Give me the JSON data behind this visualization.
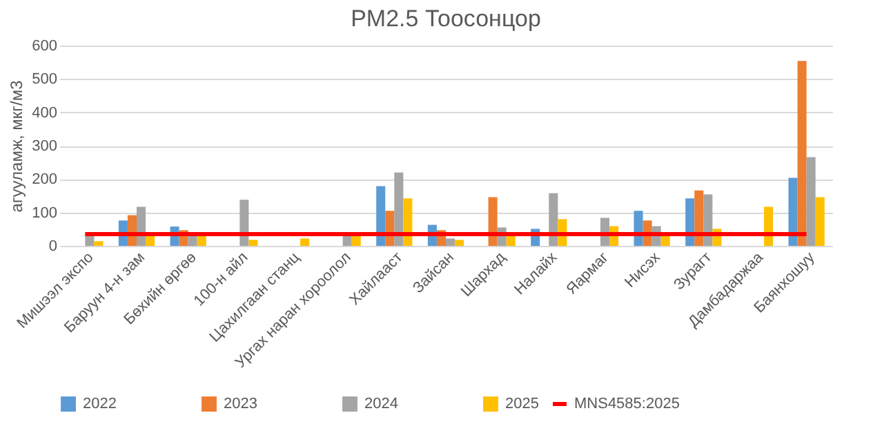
{
  "chart_data": {
    "type": "bar",
    "title": "PM2.5 Тоосонцор",
    "ylabel": "агууламж, мкг/м3",
    "categories": [
      "Мишээл экспо",
      "Баруун 4-н зам",
      "Бөхийн өргөө",
      "100-н айл",
      "Цахилгаан станц",
      "Ургах наран хороолол",
      "Хайлааст",
      "Зайсан",
      "Шархад",
      "Налайх",
      "Яармаг",
      "Нисэх",
      "Зурагт",
      "Дамбадаржаа",
      "Баянхошуу"
    ],
    "series": [
      {
        "name": "2022",
        "color": "#5b9bd5",
        "values": [
          null,
          76,
          58,
          null,
          null,
          null,
          179,
          63,
          null,
          51,
          null,
          105,
          142,
          null,
          204
        ]
      },
      {
        "name": "2023",
        "color": "#ed7d31",
        "values": [
          null,
          92,
          47,
          null,
          null,
          null,
          105,
          47,
          146,
          null,
          null,
          76,
          166,
          null,
          554
        ]
      },
      {
        "name": "2024",
        "color": "#a5a5a5",
        "values": [
          33,
          117,
          40,
          138,
          null,
          40,
          220,
          22,
          55,
          158,
          84,
          59,
          154,
          null,
          266
        ]
      },
      {
        "name": "2025",
        "color": "#ffc000",
        "values": [
          14,
          35,
          38,
          18,
          22,
          40,
          142,
          18,
          38,
          80,
          59,
          35,
          51,
          117,
          146
        ]
      },
      {
        "name": "MNS4585:2025",
        "color": "#ff0000",
        "type": "line",
        "values": [
          35,
          35,
          35,
          35,
          35,
          35,
          35,
          35,
          35,
          35,
          35,
          35,
          35,
          35,
          35
        ]
      }
    ],
    "ylim": [
      0,
      600
    ],
    "yticks": [
      0,
      100,
      200,
      300,
      400,
      500,
      600
    ],
    "grid": "y",
    "legend": "bottom"
  }
}
